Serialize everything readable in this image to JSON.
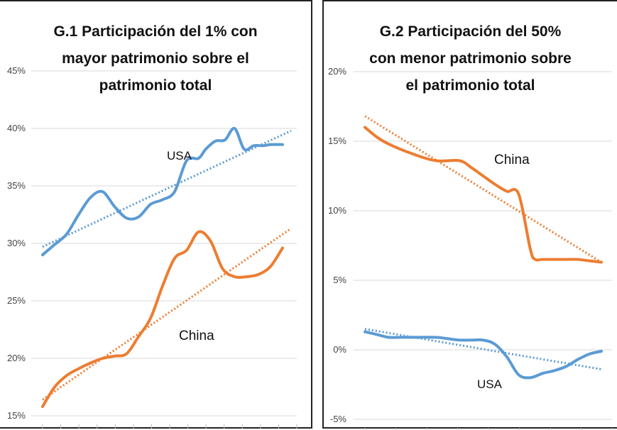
{
  "chart_data": [
    {
      "id": "g1",
      "type": "line",
      "title_lines": [
        "G.1 Participación del 1% con",
        "mayor patrimonio sobre el",
        "patrimonio total"
      ],
      "y_ticks": [
        "45%",
        "40%",
        "35%",
        "30%",
        "25%",
        "20%",
        "15%"
      ],
      "ylim": [
        15,
        45
      ],
      "xlim": [
        0,
        1
      ],
      "grid": true,
      "series": [
        {
          "name": "USA",
          "color": "#5b9bd5",
          "x": [
            0,
            0.05,
            0.1,
            0.15,
            0.2,
            0.25,
            0.3,
            0.35,
            0.4,
            0.45,
            0.5,
            0.55,
            0.6,
            0.65,
            0.68,
            0.72,
            0.76,
            0.8,
            0.84,
            0.88,
            0.92,
            0.95,
            1.0
          ],
          "values": [
            29.0,
            29.9,
            30.8,
            32.5,
            34.0,
            34.5,
            33.2,
            32.2,
            32.3,
            33.4,
            33.8,
            34.5,
            37.2,
            37.4,
            38.2,
            38.9,
            39.0,
            40.0,
            38.2,
            38.5,
            38.5,
            38.6,
            38.6
          ],
          "trend": [
            29.7,
            39.8
          ]
        },
        {
          "name": "China",
          "color": "#ed7d31",
          "x": [
            0,
            0.05,
            0.1,
            0.15,
            0.2,
            0.25,
            0.3,
            0.35,
            0.4,
            0.45,
            0.5,
            0.55,
            0.6,
            0.65,
            0.7,
            0.75,
            0.8,
            0.85,
            0.9,
            0.95,
            1.0
          ],
          "values": [
            15.8,
            17.5,
            18.5,
            19.1,
            19.6,
            20.0,
            20.2,
            20.4,
            21.9,
            23.5,
            26.3,
            28.7,
            29.4,
            31.0,
            30.2,
            27.8,
            27.1,
            27.1,
            27.3,
            28.0,
            29.6
          ],
          "trend": [
            16.4,
            31.3
          ]
        }
      ],
      "annotations": [
        {
          "text": "USA"
        },
        {
          "text": "China"
        }
      ]
    },
    {
      "id": "g2",
      "type": "line",
      "title_lines": [
        "G.2 Participación del 50%",
        "con menor patrimonio sobre",
        "el patrimonio total"
      ],
      "y_ticks": [
        "20%",
        "15%",
        "10%",
        "5%",
        "0%",
        "-5%"
      ],
      "ylim": [
        -5,
        20
      ],
      "xlim": [
        0,
        1
      ],
      "grid": true,
      "series": [
        {
          "name": "China",
          "color": "#ed7d31",
          "x": [
            0,
            0.05,
            0.1,
            0.2,
            0.3,
            0.4,
            0.45,
            0.5,
            0.55,
            0.6,
            0.65,
            0.7,
            0.72,
            0.75,
            0.8,
            0.85,
            0.9,
            0.95,
            1.0
          ],
          "values": [
            16.0,
            15.3,
            14.8,
            14.1,
            13.6,
            13.6,
            13.1,
            12.5,
            11.9,
            11.4,
            11.2,
            7.2,
            6.5,
            6.5,
            6.5,
            6.5,
            6.5,
            6.4,
            6.3
          ],
          "trend": [
            16.8,
            6.3
          ]
        },
        {
          "name": "USA",
          "color": "#5b9bd5",
          "x": [
            0,
            0.05,
            0.1,
            0.15,
            0.2,
            0.3,
            0.35,
            0.4,
            0.45,
            0.5,
            0.55,
            0.6,
            0.65,
            0.7,
            0.75,
            0.8,
            0.85,
            0.9,
            0.95,
            1.0
          ],
          "values": [
            1.3,
            1.1,
            0.9,
            0.9,
            0.9,
            0.9,
            0.8,
            0.7,
            0.7,
            0.7,
            0.4,
            -0.5,
            -1.8,
            -2.0,
            -1.7,
            -1.5,
            -1.2,
            -0.7,
            -0.3,
            -0.1
          ],
          "trend": [
            1.5,
            -1.4
          ]
        }
      ],
      "annotations": [
        {
          "text": "China"
        },
        {
          "text": "USA"
        }
      ]
    }
  ]
}
